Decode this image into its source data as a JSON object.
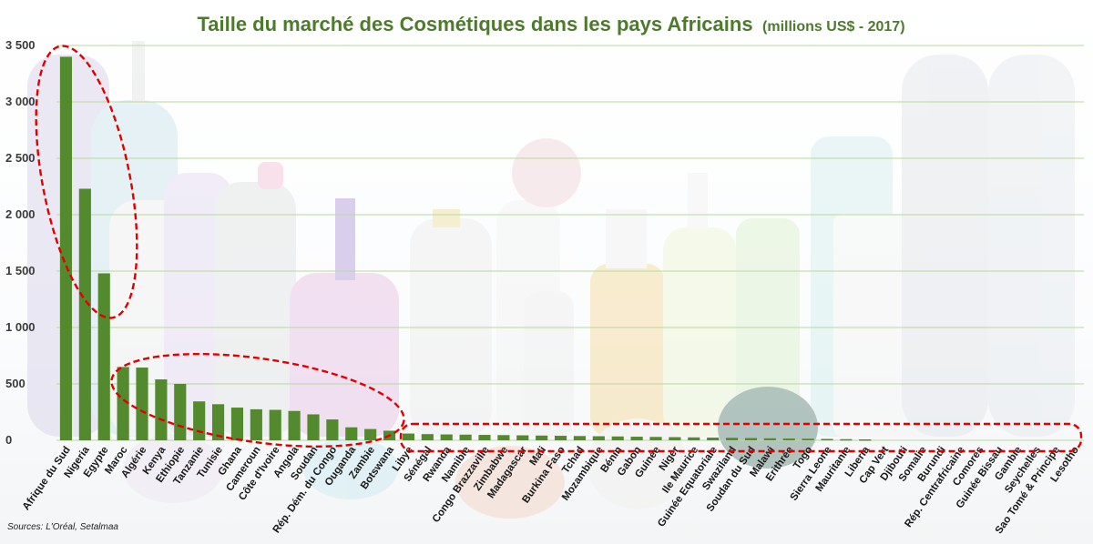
{
  "chart_data": {
    "type": "bar",
    "title": "Taille du marché des Cosmétiques dans les pays Africains",
    "subtitle": "(millions US$ - 2017)",
    "xlabel": "",
    "ylabel": "",
    "ylim": [
      0,
      3500
    ],
    "yticks": [
      0,
      500,
      1000,
      1500,
      2000,
      2500,
      3000,
      3500
    ],
    "ytick_labels": [
      "0",
      "500",
      "1 000",
      "1 500",
      "2 000",
      "2 500",
      "3 000",
      "3 500"
    ],
    "grid": true,
    "bar_color": "#538a2e",
    "categories": [
      "Afrique du Sud",
      "Nigeria",
      "Egypte",
      "Maroc",
      "Algérie",
      "Kenya",
      "Ethiopie",
      "Tanzanie",
      "Tunisie",
      "Ghana",
      "Cameroun",
      "Côte d'Ivoire",
      "Angola",
      "Soudan",
      "Rép. Dém. du Congo",
      "Ouganda",
      "Zambie",
      "Botswana",
      "Libye",
      "Sénégal",
      "Rwanda",
      "Namibie",
      "Congo Brazzaville",
      "Zimbabwe",
      "Madagascar",
      "Mali",
      "Burkina Faso",
      "Tchad",
      "Mozambique",
      "Bénin",
      "Gabon",
      "Guinée",
      "Niger",
      "Ile Maurice",
      "Guinée Equatoriale",
      "Swaziland",
      "Soudan du Sud",
      "Malawi",
      "Erithrée",
      "Togo",
      "Sierra Leone",
      "Mauritanie",
      "Liberia",
      "Cap Vert",
      "Djibouti",
      "Somalie",
      "Burundi",
      "Rép. Centrafricaine",
      "Comores",
      "Guinée Bissau",
      "Gambie",
      "Seychelles",
      "Sao Tomé & Principe",
      "Lesotho"
    ],
    "values": [
      3400,
      2230,
      1480,
      650,
      645,
      540,
      500,
      345,
      320,
      290,
      275,
      270,
      260,
      230,
      185,
      115,
      100,
      85,
      60,
      55,
      52,
      50,
      48,
      46,
      44,
      42,
      40,
      38,
      36,
      34,
      32,
      30,
      28,
      26,
      24,
      22,
      20,
      18,
      16,
      14,
      12,
      10,
      8,
      0,
      0,
      0,
      0,
      0,
      0,
      0,
      0,
      0,
      0,
      0
    ]
  },
  "source": "Sources: L'Oréal, Setalmaa",
  "colors": {
    "title": "#4d7a2c",
    "bars": "#538a2e",
    "grid": "#b9d89a",
    "highlight_ellipse": "#e00000"
  }
}
